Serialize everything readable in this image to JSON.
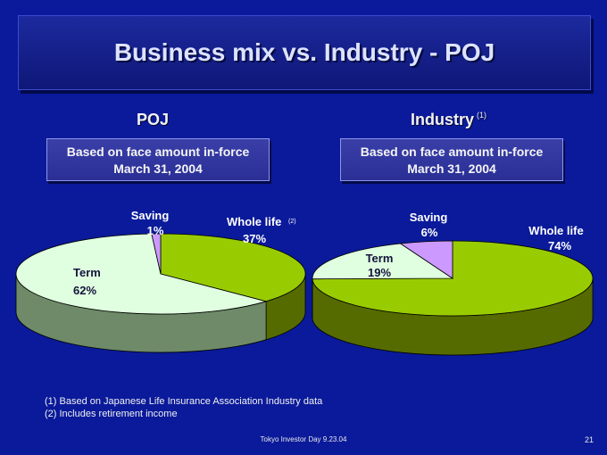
{
  "title": "Business mix vs. Industry - POJ",
  "left_heading": "POJ",
  "right_heading": "Industry",
  "right_heading_note": "(1)",
  "left_box": {
    "line1": "Based on face amount in-force",
    "line2": "March 31, 2004"
  },
  "right_box": {
    "line1": "Based on face amount in-force",
    "line2": "March 31, 2004"
  },
  "chart_data": [
    {
      "type": "pie",
      "categories": [
        "Whole life",
        "Term",
        "Saving"
      ],
      "values": [
        37,
        62,
        1
      ],
      "labels": [
        {
          "name": "Whole life",
          "note": "(2)",
          "pct": "37%"
        },
        {
          "name": "Term",
          "pct": "62%"
        },
        {
          "name": "Saving",
          "pct": "1%"
        }
      ],
      "colors": [
        "#99cc00",
        "#e0ffe0",
        "#cc99ff"
      ],
      "side_colors": [
        "#556b00",
        "#6e8a68",
        "#7a5aa8"
      ]
    },
    {
      "type": "pie",
      "categories": [
        "Whole life",
        "Term",
        "Saving"
      ],
      "values": [
        74,
        19,
        6
      ],
      "labels": [
        {
          "name": "Whole life",
          "pct": "74%"
        },
        {
          "name": "Term",
          "pct": "19%"
        },
        {
          "name": "Saving",
          "pct": "6%"
        }
      ],
      "colors": [
        "#99cc00",
        "#e0ffe0",
        "#cc99ff"
      ],
      "side_colors": [
        "#556b00",
        "#6e8a68",
        "#7a5aa8"
      ]
    }
  ],
  "footnotes": [
    "(1) Based on Japanese Life Insurance Association Industry data",
    "(2) Includes retirement income"
  ],
  "footer": "Tokyo Investor Day 9.23.04",
  "page_number": "21"
}
